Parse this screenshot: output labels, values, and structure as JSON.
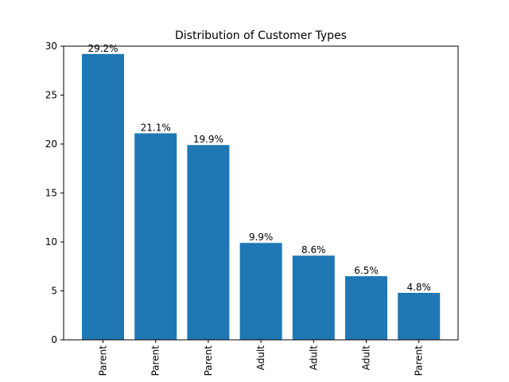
{
  "chart_data": {
    "type": "bar",
    "title": "Distribution of Customer Types",
    "xlabel": "",
    "ylabel": "",
    "categories": [
      "Parent",
      "Parent",
      "Parent",
      "Adult",
      "Adult",
      "Adult",
      "Parent"
    ],
    "values": [
      29.2,
      21.1,
      19.9,
      9.9,
      8.6,
      6.5,
      4.8
    ],
    "value_labels": [
      "29.2%",
      "21.1%",
      "19.9%",
      "9.9%",
      "8.6%",
      "6.5%",
      "4.8%"
    ],
    "ylim": [
      0,
      30
    ],
    "yticks": [
      0,
      5,
      10,
      15,
      20,
      25,
      30
    ],
    "bar_color": "#1f77b4",
    "grid": false,
    "legend": "none"
  }
}
